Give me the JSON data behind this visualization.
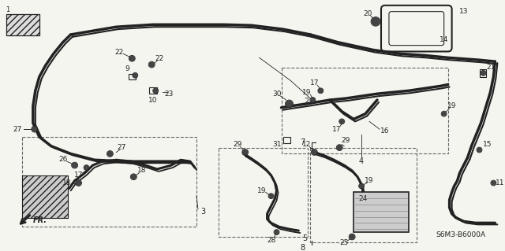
{
  "background_color": "#f5f5f0",
  "diagram_color": "#222222",
  "code": "S6M3-B6000A",
  "figsize": [
    6.4,
    3.19
  ],
  "dpi": 100
}
